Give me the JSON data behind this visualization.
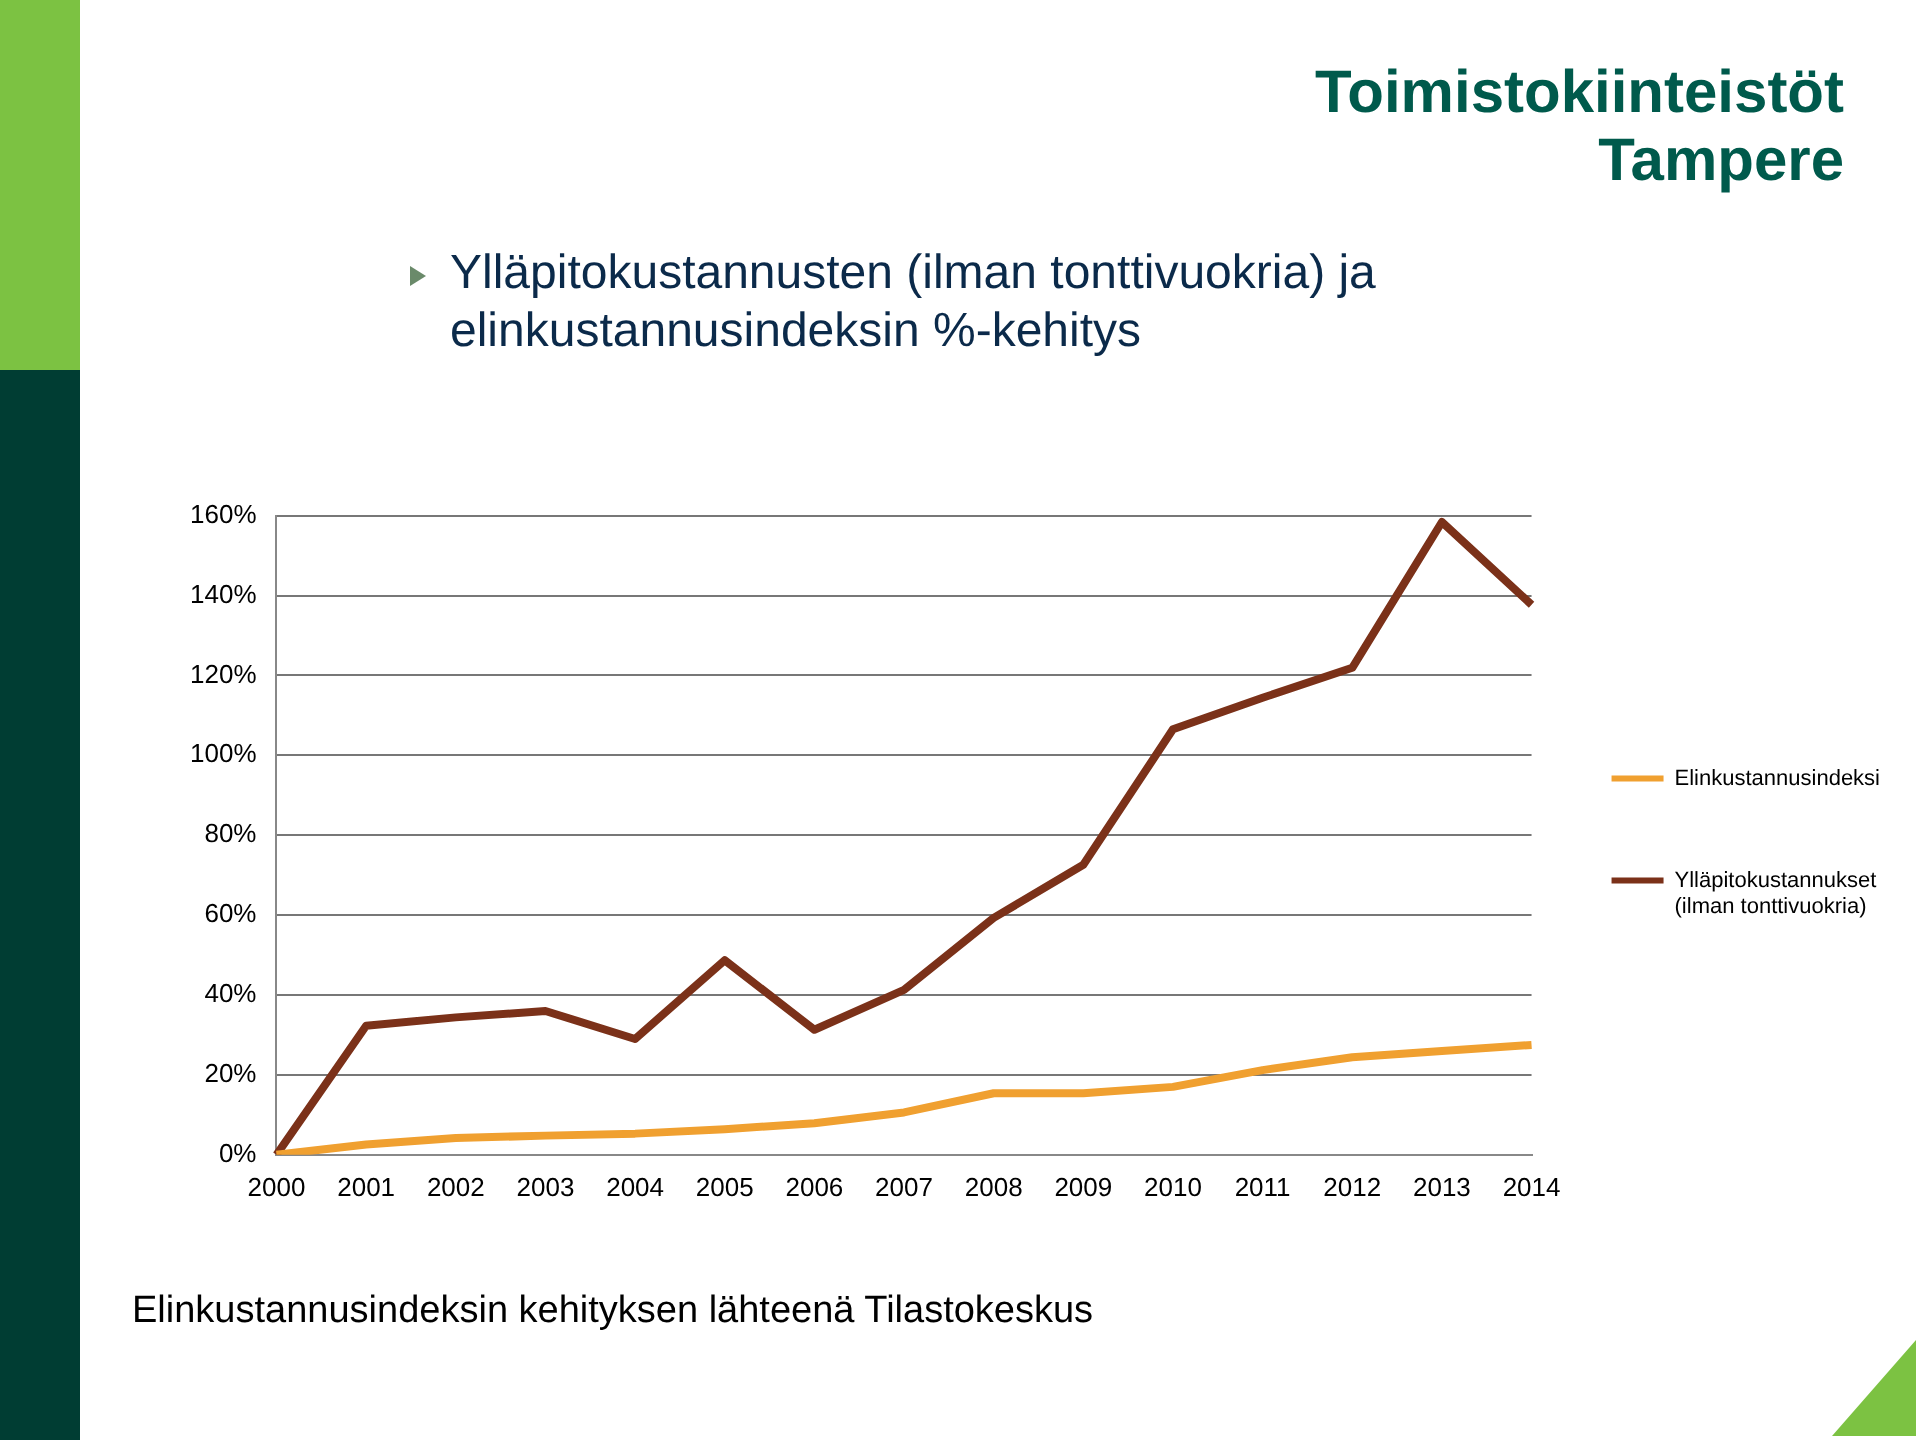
{
  "chart_data": {
    "type": "line",
    "title": "Toimistokiinteistöt\nTampere",
    "subtitle": "Ylläpitokustannusten (ilman tonttivuokria) ja elinkustannusindeksin %-kehitys",
    "categories": [
      "2000",
      "2001",
      "2002",
      "2003",
      "2004",
      "2005",
      "2006",
      "2007",
      "2008",
      "2009",
      "2010",
      "2011",
      "2012",
      "2013",
      "2014"
    ],
    "series": [
      {
        "name": "Elinkustannusindeksi",
        "color": "#f0a030",
        "values": [
          0,
          2.6,
          4.2,
          4.8,
          5.3,
          6.4,
          7.9,
          10.6,
          15.4,
          15.4,
          17,
          21.2,
          24.4,
          26,
          27.5
        ]
      },
      {
        "name": "Ylläpitokustannukset (ilman tonttivuokria)",
        "color": "#7b3119",
        "values": [
          0,
          32.3,
          34.4,
          36,
          29,
          48.7,
          31.3,
          41.3,
          59.3,
          72.6,
          106.5,
          114.4,
          121.9,
          158.4,
          137.7
        ]
      }
    ],
    "ylim": [
      0,
      160
    ],
    "yticks": [
      {
        "value": 0,
        "label": "0%"
      },
      {
        "value": 20,
        "label": "20%"
      },
      {
        "value": 40,
        "label": "40%"
      },
      {
        "value": 60,
        "label": "60%"
      },
      {
        "value": 80,
        "label": "80%"
      },
      {
        "value": 100,
        "label": "100%"
      },
      {
        "value": 120,
        "label": "120%"
      },
      {
        "value": 140,
        "label": "140%"
      },
      {
        "value": 160,
        "label": "160%"
      }
    ],
    "grid": "y",
    "legend": "right",
    "marker": "none",
    "line_style": "solid",
    "annotations": [
      "Elinkustannusindeksin kehityksen lähteenä Tilastokeskus"
    ]
  }
}
